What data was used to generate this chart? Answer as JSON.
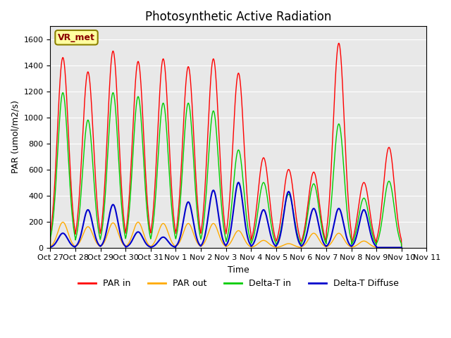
{
  "title": "Photosynthetic Active Radiation",
  "ylabel": "PAR (umol/m2/s)",
  "xlabel": "Time",
  "xlim_days": 15.5,
  "ylim": [
    0,
    1700
  ],
  "yticks": [
    0,
    200,
    400,
    600,
    800,
    1000,
    1200,
    1400,
    1600
  ],
  "background_color": "#e8e8e8",
  "label_box_text": "VR_met",
  "label_box_facecolor": "#ffffa0",
  "label_box_edgecolor": "#8b8000",
  "legend_labels": [
    "PAR in",
    "PAR out",
    "Delta-T in",
    "Delta-T Diffuse"
  ],
  "legend_colors": [
    "#ff0000",
    "#ffaa00",
    "#00cc00",
    "#0000cc"
  ],
  "x_tick_labels": [
    "Oct 27",
    "Oct 28",
    "Oct 29",
    "Oct 30",
    "Oct 31",
    "Nov 1",
    "Nov 2",
    "Nov 3",
    "Nov 4",
    "Nov 5",
    "Nov 6",
    "Nov 7",
    "Nov 8",
    "Nov 9",
    "Nov 10",
    "Nov 11"
  ],
  "num_days": 16,
  "day_peaks_par_in": [
    1460,
    1350,
    1510,
    1430,
    1450,
    1390,
    1450,
    1340,
    690,
    600,
    580,
    1570,
    500,
    770
  ],
  "day_peaks_par_out": [
    195,
    160,
    190,
    195,
    185,
    185,
    185,
    130,
    55,
    30,
    110,
    110,
    50,
    0
  ],
  "day_peaks_delta_t_in": [
    1190,
    980,
    1190,
    1160,
    1110,
    1110,
    1050,
    750,
    500,
    410,
    490,
    950,
    380,
    510
  ],
  "day_peaks_delta_t_diffuse": [
    110,
    290,
    330,
    120,
    80,
    350,
    440,
    500,
    290,
    430,
    300,
    300,
    290,
    0
  ]
}
